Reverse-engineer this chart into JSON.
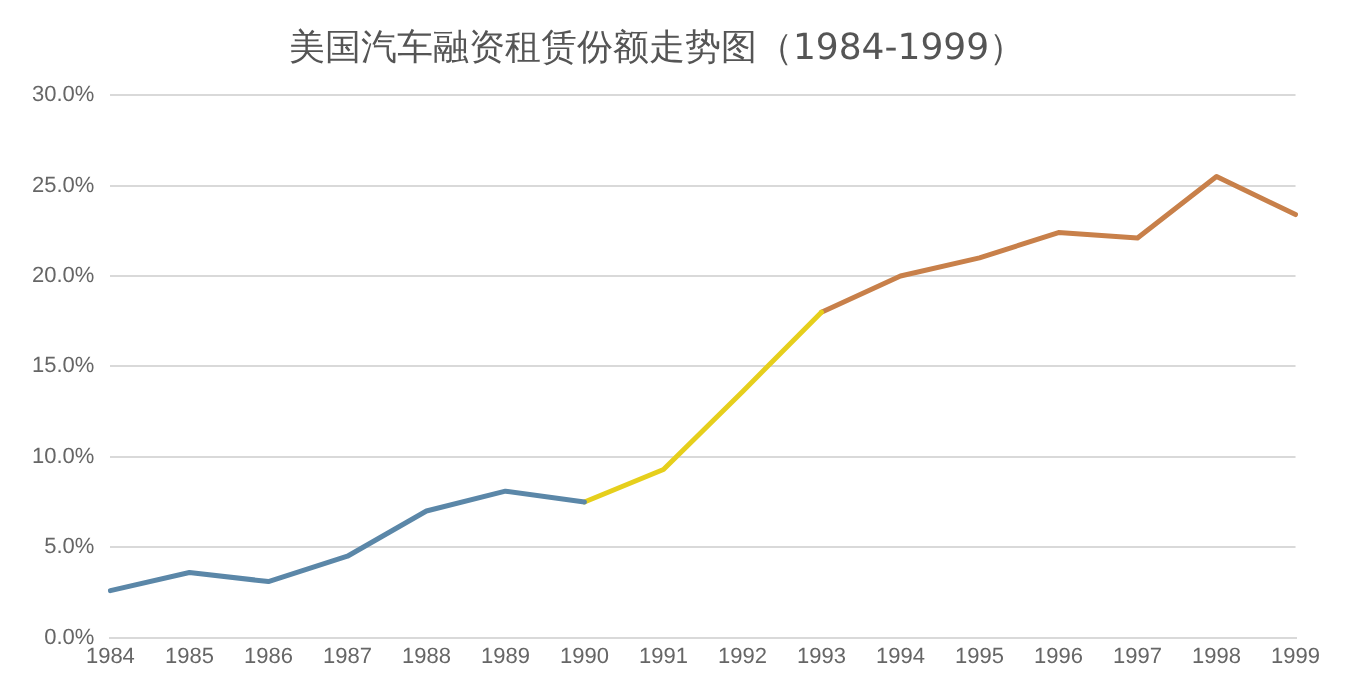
{
  "chart_data": {
    "type": "line",
    "title": "美国汽车融资租赁份额走势图（1984-1999）",
    "categories": [
      "1984",
      "1985",
      "1986",
      "1987",
      "1988",
      "1989",
      "1990",
      "1991",
      "1992",
      "1993",
      "1994",
      "1995",
      "1996",
      "1997",
      "1998",
      "1999"
    ],
    "series": [
      {
        "color": "#5b87a8",
        "values": [
          2.6,
          3.6,
          3.1,
          4.5,
          7.0,
          8.1,
          7.5,
          null,
          null,
          null,
          null,
          null,
          null,
          null,
          null,
          null
        ]
      },
      {
        "color": "#e6cf1c",
        "values": [
          null,
          null,
          null,
          null,
          null,
          null,
          7.5,
          9.3,
          13.6,
          18.0,
          null,
          null,
          null,
          null,
          null,
          null
        ]
      },
      {
        "color": "#c8804a",
        "values": [
          null,
          null,
          null,
          null,
          null,
          null,
          null,
          null,
          null,
          18.0,
          20.0,
          21.0,
          22.4,
          22.1,
          25.5,
          23.4
        ]
      }
    ],
    "ylim": [
      0,
      30
    ],
    "yticks": [
      {
        "value": 0,
        "label": "0.0%"
      },
      {
        "value": 5,
        "label": "5.0%"
      },
      {
        "value": 10,
        "label": "10.0%"
      },
      {
        "value": 15,
        "label": "15.0%"
      },
      {
        "value": 20,
        "label": "20.0%"
      },
      {
        "value": 25,
        "label": "25.0%"
      },
      {
        "value": 30,
        "label": "30.0%"
      }
    ],
    "grid": "y",
    "legend": false,
    "marker": "none",
    "line_style": "solid"
  }
}
